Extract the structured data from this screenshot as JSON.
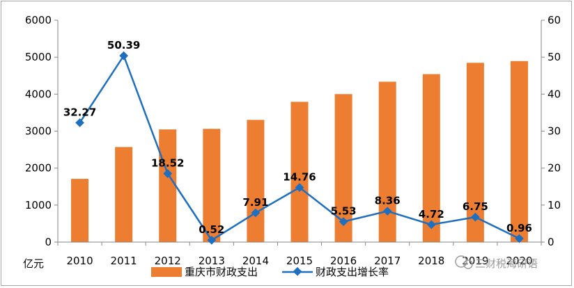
{
  "chart_data": {
    "type": "bar+line",
    "categories": [
      "2010",
      "2011",
      "2012",
      "2013",
      "2014",
      "2015",
      "2016",
      "2017",
      "2018",
      "2019",
      "2020"
    ],
    "series": [
      {
        "name": "重庆市财政支出",
        "kind": "bar",
        "axis": "left",
        "values": [
          1710,
          2570,
          3046,
          3062,
          3304,
          3792,
          4001,
          4336,
          4541,
          4847,
          4894
        ],
        "color": "#ed7d31"
      },
      {
        "name": "财政支出增长率",
        "kind": "line",
        "axis": "right",
        "values": [
          32.27,
          50.39,
          18.52,
          0.52,
          7.91,
          14.76,
          5.53,
          8.36,
          4.72,
          6.75,
          0.96
        ],
        "labels": [
          "32.27",
          "50.39",
          "18.52",
          "0.52",
          "7.91",
          "14.76",
          "5.53",
          "8.36",
          "4.72",
          "6.75",
          "0.96"
        ],
        "color": "#1f6fc0"
      }
    ],
    "y_left": {
      "ticks": [
        "0",
        "1000",
        "2000",
        "3000",
        "4000",
        "5000",
        "6000"
      ],
      "min": 0,
      "max": 6000,
      "unit": "亿元"
    },
    "y_right": {
      "ticks": [
        "0",
        "10",
        "20",
        "30",
        "40",
        "50",
        "60"
      ],
      "min": 0,
      "max": 60
    },
    "grid": false,
    "legend_position": "bottom"
  },
  "watermark": "三财税海研语"
}
